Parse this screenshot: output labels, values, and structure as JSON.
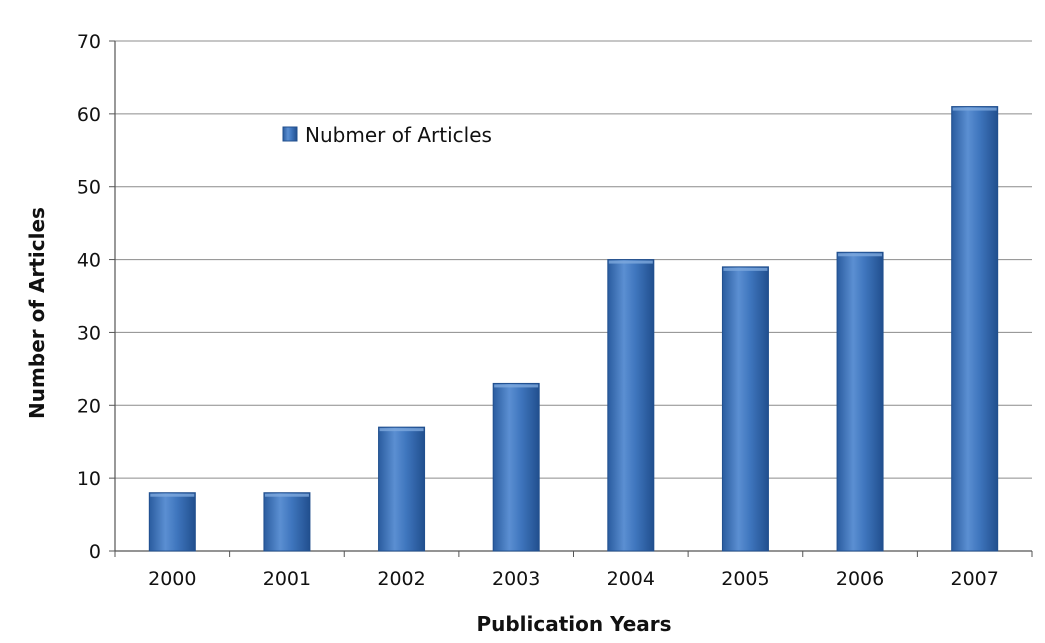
{
  "chart_data": {
    "type": "bar",
    "categories": [
      "2000",
      "2001",
      "2002",
      "2003",
      "2004",
      "2005",
      "2006",
      "2007"
    ],
    "series": [
      {
        "name": "Nubmer of Articles",
        "values": [
          8,
          8,
          17,
          23,
          40,
          39,
          41,
          61
        ]
      }
    ],
    "title": "",
    "xlabel": "Publication Years",
    "ylabel": "Number of Articles",
    "ylim": [
      0,
      70
    ],
    "yticks": [
      0,
      10,
      20,
      30,
      40,
      50,
      60,
      70
    ],
    "grid": true,
    "legend": "top-left, inside plot",
    "colors": {
      "bar": "#3f76be",
      "bar_dark": "#214f8e",
      "bar_light": "#7ea9dd",
      "grid": "#8c8c8c",
      "axis": "#555555"
    }
  }
}
